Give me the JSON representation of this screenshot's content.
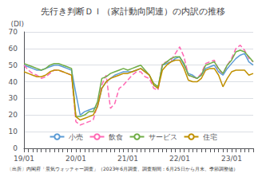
{
  "chart_data": {
    "type": "line",
    "title": "先行き判断ＤＩ（家計動向関連）の内訳の推移",
    "ylabel": "(DI)",
    "annotations": [
      "〔出所〕内閣府「景気ウォッチャー調査」（2023年6月調査、調査期間：6月25日から月末、季節調整値）"
    ],
    "categories": [
      "19/01",
      null,
      null,
      null,
      null,
      null,
      null,
      null,
      null,
      null,
      null,
      null,
      "20/01",
      null,
      null,
      null,
      null,
      null,
      null,
      null,
      null,
      null,
      null,
      null,
      "21/01",
      null,
      null,
      null,
      null,
      null,
      null,
      null,
      null,
      null,
      null,
      null,
      "22/01",
      null,
      null,
      null,
      null,
      null,
      null,
      null,
      null,
      null,
      null,
      null,
      "23/01",
      null,
      null,
      null,
      null,
      null
    ],
    "series": [
      {
        "name": "小売",
        "color": "#5b9bd5",
        "line_style": "solid",
        "values": [
          50,
          49,
          48,
          47,
          47,
          48,
          49,
          50,
          50,
          49,
          48,
          47,
          33,
          20,
          22,
          23,
          24,
          25,
          36,
          40,
          42,
          44,
          45,
          46,
          46,
          46,
          47,
          48,
          46,
          44,
          38,
          36,
          50,
          51,
          52,
          54,
          55,
          50,
          45,
          44,
          42,
          44,
          48,
          49,
          50,
          46,
          44,
          48,
          51,
          54,
          56,
          57,
          52,
          50
        ]
      },
      {
        "name": "飲食",
        "color": "#ff69b4",
        "line_style": "dashed",
        "values": [
          50,
          47,
          45,
          44,
          42,
          43,
          45,
          47,
          47,
          46,
          45,
          44,
          16,
          14,
          15,
          16,
          17,
          26,
          38,
          44,
          24,
          27,
          36,
          38,
          41,
          44,
          46,
          46,
          43,
          42,
          36,
          35,
          51,
          52,
          53,
          57,
          61,
          55,
          44,
          43,
          42,
          45,
          51,
          52,
          53,
          47,
          45,
          50,
          54,
          60,
          62,
          59,
          54,
          52
        ]
      },
      {
        "name": "サービス",
        "color": "#70ad47",
        "line_style": "solid",
        "values": [
          51,
          50,
          49,
          48,
          47,
          48,
          50,
          51,
          51,
          50,
          49,
          48,
          19,
          19,
          20,
          22,
          22,
          28,
          42,
          43,
          45,
          46,
          47,
          48,
          47,
          48,
          49,
          50,
          47,
          44,
          39,
          37,
          50,
          52,
          54,
          55,
          55,
          51,
          44,
          43,
          42,
          44,
          50,
          51,
          52,
          48,
          45,
          50,
          53,
          58,
          59,
          58,
          55,
          52
        ]
      },
      {
        "name": "住宅",
        "color": "#c09000",
        "line_style": "solid",
        "values": [
          46,
          45,
          44,
          43,
          43,
          44,
          46,
          47,
          47,
          46,
          45,
          44,
          19,
          17,
          18,
          19,
          20,
          25,
          36,
          40,
          42,
          43,
          44,
          45,
          45,
          46,
          47,
          48,
          46,
          44,
          38,
          36,
          47,
          50,
          52,
          53,
          53,
          48,
          41,
          40,
          40,
          42,
          47,
          48,
          48,
          44,
          37,
          42,
          46,
          47,
          47,
          47,
          44,
          45
        ]
      }
    ],
    "ylim": [
      0,
      70
    ],
    "yticks": [
      0,
      10,
      20,
      30,
      40,
      50,
      60,
      70
    ],
    "grid": true,
    "legend": "lower center"
  }
}
